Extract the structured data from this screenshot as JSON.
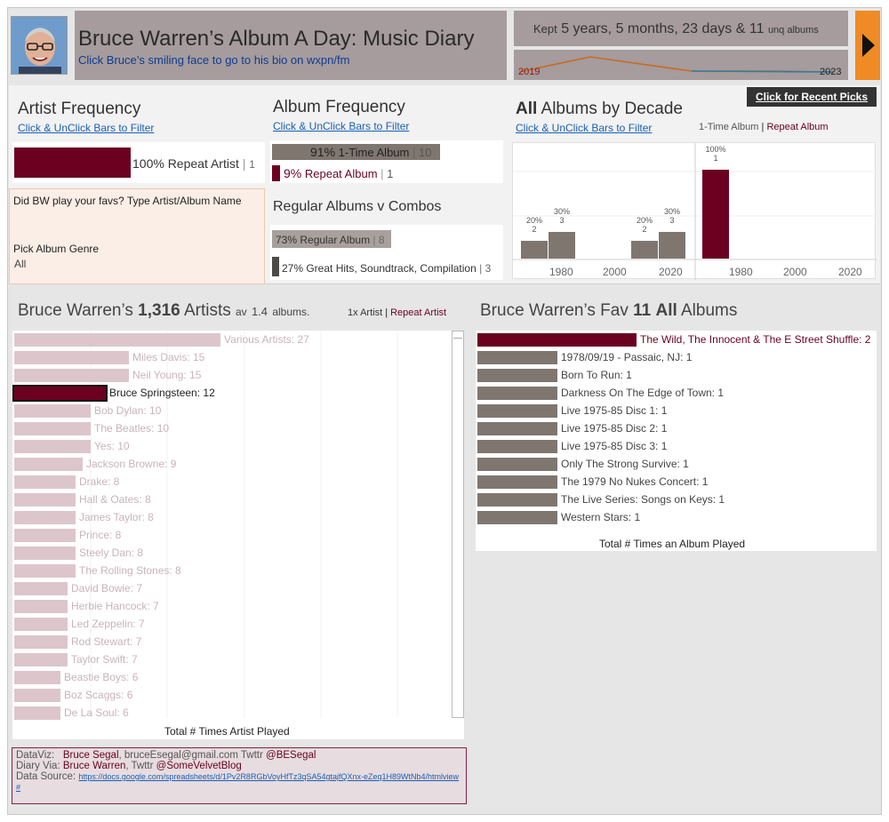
{
  "header": {
    "title": "Bruce Warren’s Album A Day: Music Diary",
    "subtitle": "Click Bruce’s smiling face to go to his bio on wxpn/fm",
    "kept_prefix": "Kept",
    "kept_duration": "5 years, 5 months, 23 days &",
    "kept_count": "11",
    "kept_suffix": "unq albums",
    "spark_start": "2019",
    "spark_end": "2023"
  },
  "recent_button": "Click for Recent Picks",
  "artist_freq": {
    "title": "Artist Frequency",
    "link": "Click & UnClick Bars to Filter",
    "bar_label": "100% Repeat Artist",
    "bar_count": "1",
    "value_fraction": 1.0
  },
  "album_freq": {
    "title": "Album Frequency",
    "link": "Click & UnClick Bars to Filter",
    "one_time_pct": "91%",
    "one_time_label": "1-Time Album",
    "one_time_count": "10",
    "repeat_pct": "9%",
    "repeat_label": "Repeat Album",
    "repeat_count": "1"
  },
  "regular": {
    "title": "Regular Albums v Combos",
    "reg_label": "73% Regular Album",
    "reg_count": "8",
    "combo_label": "27% Great Hits, Soundtrack, Compilation",
    "combo_count": "3"
  },
  "faves": {
    "prompt": "Did BW play your favs? Type Artist/Album Name",
    "genre_label": "Pick Album Genre",
    "genre_value": "All"
  },
  "decade": {
    "title_bold": "All",
    "title_rest": "Albums by Decade",
    "link": "Click & UnClick Bars to Filter",
    "legend_one": "1-Time Album",
    "legend_sep": "|",
    "legend_repeat": "Repeat Album",
    "panels": [
      {
        "bars": [
          {
            "pct": "20%",
            "count": "2"
          },
          {
            "pct": "30%",
            "count": "3"
          },
          {
            "pct": "20%",
            "count": "2"
          },
          {
            "pct": "30%",
            "count": "3"
          }
        ],
        "ticks": [
          "1980",
          "2000",
          "2020"
        ]
      },
      {
        "bars": [
          {
            "pct": "100%",
            "count": "1"
          }
        ],
        "ticks": [
          "1980",
          "2000",
          "2020"
        ]
      }
    ]
  },
  "artists": {
    "title_prefix": "Bruce Warren’s",
    "count": "1,316",
    "title_mid": "Artists",
    "av_prefix": "av",
    "av_value": "1.4",
    "av_suffix": "albums.",
    "legend_one": "1x Artist",
    "legend_sep": "|",
    "legend_repeat": "Repeat Artist",
    "axis_title": "Total # Times Artist Played",
    "rows": [
      {
        "label": "Various Artists: 27",
        "value": 27,
        "highlight": false
      },
      {
        "label": "Miles Davis: 15",
        "value": 15,
        "highlight": false
      },
      {
        "label": "Neil Young: 15",
        "value": 15,
        "highlight": false
      },
      {
        "label": "Bruce Springsteen: 12",
        "value": 12,
        "highlight": true
      },
      {
        "label": "Bob Dylan: 10",
        "value": 10,
        "highlight": false
      },
      {
        "label": "The Beatles: 10",
        "value": 10,
        "highlight": false
      },
      {
        "label": "Yes: 10",
        "value": 10,
        "highlight": false
      },
      {
        "label": "Jackson Browne: 9",
        "value": 9,
        "highlight": false
      },
      {
        "label": "Drake: 8",
        "value": 8,
        "highlight": false
      },
      {
        "label": "Hall & Oates: 8",
        "value": 8,
        "highlight": false
      },
      {
        "label": "James Taylor: 8",
        "value": 8,
        "highlight": false
      },
      {
        "label": "Prince: 8",
        "value": 8,
        "highlight": false
      },
      {
        "label": "Steely Dan: 8",
        "value": 8,
        "highlight": false
      },
      {
        "label": "The Rolling Stones: 8",
        "value": 8,
        "highlight": false
      },
      {
        "label": "David Bowie: 7",
        "value": 7,
        "highlight": false
      },
      {
        "label": "Herbie Hancock: 7",
        "value": 7,
        "highlight": false
      },
      {
        "label": "Led Zeppelin: 7",
        "value": 7,
        "highlight": false
      },
      {
        "label": "Rod Stewart: 7",
        "value": 7,
        "highlight": false
      },
      {
        "label": "Taylor Swift: 7",
        "value": 7,
        "highlight": false
      },
      {
        "label": "Beastie Boys: 6",
        "value": 6,
        "highlight": false
      },
      {
        "label": "Boz Scaggs: 6",
        "value": 6,
        "highlight": false
      },
      {
        "label": "De La Soul: 6",
        "value": 6,
        "highlight": false
      }
    ]
  },
  "albums": {
    "title_prefix": "Bruce Warren’s Fav",
    "count": "11",
    "title_bold": "All",
    "title_rest": "Albums",
    "axis_title": "Total # Times an Album Played",
    "rows": [
      {
        "label": "The Wild, The Innocent & The E Street Shuffle: 2",
        "value": 2,
        "highlight": true
      },
      {
        "label": "1978/09/19 - Passaic, NJ: 1",
        "value": 1,
        "highlight": false
      },
      {
        "label": "Born To Run: 1",
        "value": 1,
        "highlight": false
      },
      {
        "label": "Darkness On The Edge of Town: 1",
        "value": 1,
        "highlight": false
      },
      {
        "label": "Live 1975-85 Disc 1: 1",
        "value": 1,
        "highlight": false
      },
      {
        "label": "Live 1975-85 Disc 2: 1",
        "value": 1,
        "highlight": false
      },
      {
        "label": "Live 1975-85 Disc 3: 1",
        "value": 1,
        "highlight": false
      },
      {
        "label": "Only The Strong Survive: 1",
        "value": 1,
        "highlight": false
      },
      {
        "label": "The 1979 No Nukes Concert: 1",
        "value": 1,
        "highlight": false
      },
      {
        "label": "The Live Series: Songs on Keys: 1",
        "value": 1,
        "highlight": false
      },
      {
        "label": "Western Stars: 1",
        "value": 1,
        "highlight": false
      }
    ]
  },
  "credits": {
    "dataviz_label": "DataViz:",
    "dataviz_name": "Bruce Segal",
    "dataviz_email": ", bruceEsegal@gmail.com",
    "dataviz_tw_label": " Twttr",
    "dataviz_tw": "@BESegal",
    "diary_label": "Diary Via:",
    "diary_name": "Bruce Warren",
    "diary_tw_label": ", Twttr",
    "diary_tw": "@SomeVelvetBlog",
    "source_label": "Data Source:",
    "source_link": "https://docs.google.com/spreadsheets/d/1Pv2R8RGbVoyHfTz3qSA54gtajfQXnx-eZeq1H89WtNb4/htmlview#"
  },
  "colors": {
    "maroon": "#6b0020",
    "gray": "#7f7670",
    "pink": "#dcc6cc",
    "orange": "#f08a24",
    "header": "#a69b9d"
  }
}
